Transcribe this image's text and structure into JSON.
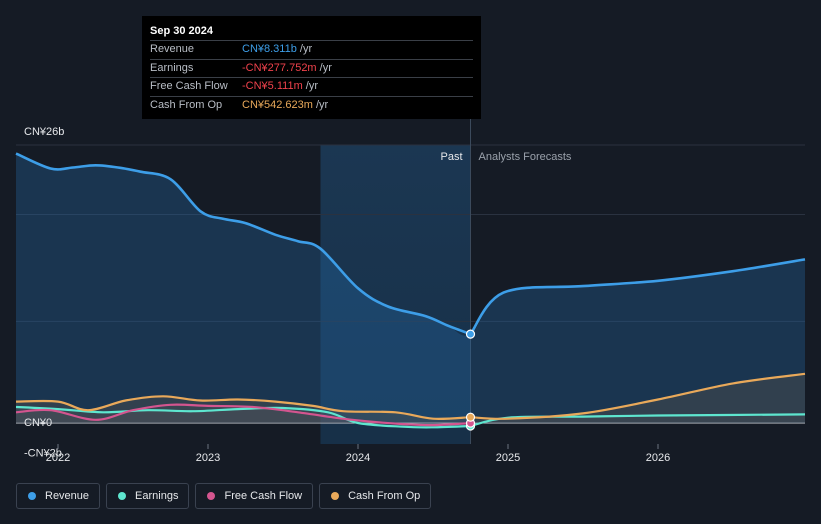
{
  "chart_data": {
    "type": "area",
    "ylabels": [
      "CN¥26b",
      "CN¥0",
      "-CN¥2b"
    ],
    "ylim": [
      -2,
      26
    ],
    "xlim": [
      2021.72,
      2026.98
    ],
    "x_ticks": [
      2022,
      2023,
      2024,
      2025,
      2026
    ],
    "x_tick_labels": [
      "2022",
      "2023",
      "2024",
      "2025",
      "2026"
    ],
    "divider_x": 2024.75,
    "highlight_start_x": 2023.75,
    "past_label": "Past",
    "forecast_label": "Analysts Forecasts",
    "legend_position": "bottom-left",
    "grid": true,
    "series": [
      {
        "name": "Revenue",
        "color": "#3d9ee8",
        "x": [
          2021.72,
          2021.95,
          2022.1,
          2022.25,
          2022.4,
          2022.55,
          2022.75,
          2022.95,
          2023.1,
          2023.25,
          2023.45,
          2023.6,
          2023.75,
          2024.0,
          2024.2,
          2024.45,
          2024.6,
          2024.75
        ],
        "values": [
          25.2,
          23.8,
          23.9,
          24.1,
          23.9,
          23.5,
          22.8,
          19.8,
          19.1,
          18.7,
          17.6,
          17.0,
          16.3,
          12.6,
          10.9,
          10.0,
          9.1,
          8.311
        ],
        "forecast_x": [
          2024.75,
          2024.97,
          2025.5,
          2026.0,
          2026.5,
          2026.98
        ],
        "forecast_values": [
          8.311,
          12.2,
          12.8,
          13.3,
          14.2,
          15.3
        ]
      },
      {
        "name": "Earnings",
        "color": "#5ee6cf",
        "x": [
          2021.72,
          2022.0,
          2022.3,
          2022.6,
          2022.9,
          2023.2,
          2023.5,
          2023.8,
          2024.0,
          2024.3,
          2024.5,
          2024.75
        ],
        "values": [
          1.5,
          1.3,
          1.0,
          1.2,
          1.1,
          1.3,
          1.4,
          1.0,
          0.0,
          -0.35,
          -0.4,
          -0.278
        ],
        "forecast_x": [
          2024.75,
          2025.0,
          2025.5,
          2026.0,
          2026.98
        ],
        "forecast_values": [
          -0.278,
          0.5,
          0.6,
          0.7,
          0.8
        ]
      },
      {
        "name": "Free Cash Flow",
        "color": "#d4558f",
        "x": [
          2021.72,
          2021.95,
          2022.25,
          2022.5,
          2022.75,
          2023.0,
          2023.3,
          2023.6,
          2023.9,
          2024.1,
          2024.3,
          2024.5,
          2024.75
        ],
        "values": [
          1.0,
          1.2,
          0.3,
          1.2,
          1.7,
          1.6,
          1.5,
          1.0,
          0.4,
          0.1,
          -0.1,
          -0.2,
          -0.005
        ]
      },
      {
        "name": "Cash From Op",
        "color": "#e9a95a",
        "x": [
          2021.72,
          2022.0,
          2022.2,
          2022.45,
          2022.7,
          2022.95,
          2023.2,
          2023.45,
          2023.7,
          2023.9,
          2024.25,
          2024.5,
          2024.75
        ],
        "values": [
          2.0,
          2.0,
          1.2,
          2.1,
          2.5,
          2.1,
          2.2,
          2.0,
          1.6,
          1.1,
          1.0,
          0.4,
          0.543
        ],
        "forecast_x": [
          2024.75,
          2025.0,
          2025.5,
          2026.0,
          2026.5,
          2026.98
        ],
        "forecast_values": [
          0.543,
          0.4,
          0.9,
          2.2,
          3.7,
          4.6
        ]
      }
    ]
  },
  "tooltip": {
    "date": "Sep 30 2024",
    "rows": [
      {
        "label": "Revenue",
        "value": "CN¥8.311b",
        "unit": " /yr",
        "color": "#3d9ee8"
      },
      {
        "label": "Earnings",
        "value": "-CN¥277.752m",
        "unit": " /yr",
        "color": "#f0424c"
      },
      {
        "label": "Free Cash Flow",
        "value": "-CN¥5.111m",
        "unit": " /yr",
        "color": "#f0424c"
      },
      {
        "label": "Cash From Op",
        "value": "CN¥542.623m",
        "unit": " /yr",
        "color": "#e9a95a"
      }
    ]
  },
  "legend": {
    "items": [
      {
        "label": "Revenue",
        "color": "#3d9ee8"
      },
      {
        "label": "Earnings",
        "color": "#5ee6cf"
      },
      {
        "label": "Free Cash Flow",
        "color": "#d4558f"
      },
      {
        "label": "Cash From Op",
        "color": "#e9a95a"
      }
    ]
  }
}
